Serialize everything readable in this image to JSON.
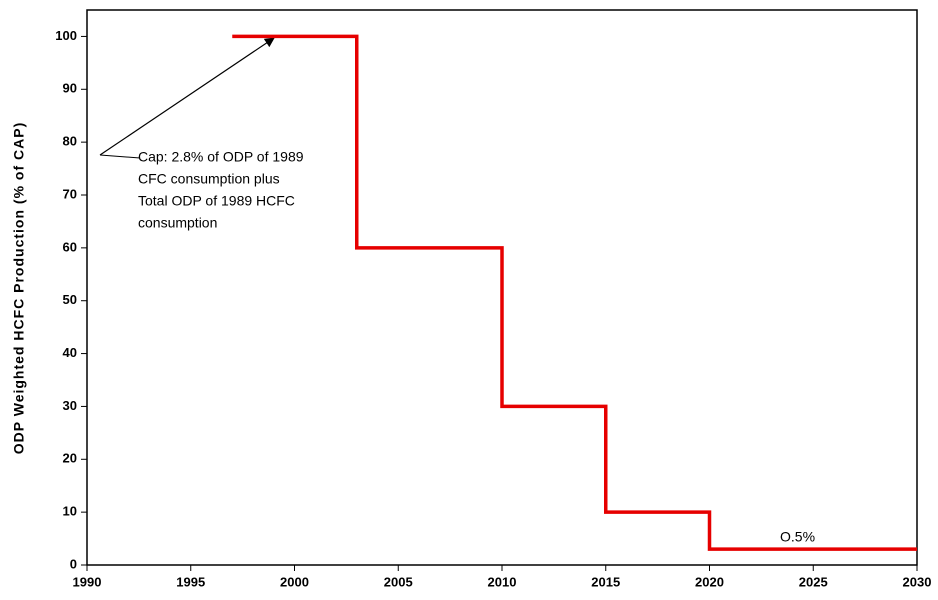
{
  "chart_data": {
    "type": "line",
    "y_label": "ODP Weighted HCFC Production (% of CAP)",
    "x": [
      1997,
      2003,
      2003,
      2010,
      2010,
      2015,
      2015,
      2020,
      2020,
      2030
    ],
    "values": [
      100,
      100,
      60,
      60,
      30,
      30,
      10,
      10,
      3,
      3
    ],
    "color": "#e60000",
    "xlim": [
      1990,
      2030
    ],
    "xticks": [
      1990,
      1995,
      2000,
      2005,
      2010,
      2015,
      2020,
      2025,
      2030
    ],
    "ylim": [
      0,
      105
    ],
    "yticks": [
      0,
      10,
      20,
      30,
      40,
      50,
      60,
      70,
      80,
      90,
      100
    ],
    "grid": false,
    "annotations": [
      {
        "lines": [
          "Cap:  2.8% of ODP of 1989",
          "CFC consumption plus",
          "Total ODP of 1989 HCFC",
          "consumption"
        ]
      },
      {
        "lines": [
          "O.5%"
        ]
      }
    ]
  }
}
